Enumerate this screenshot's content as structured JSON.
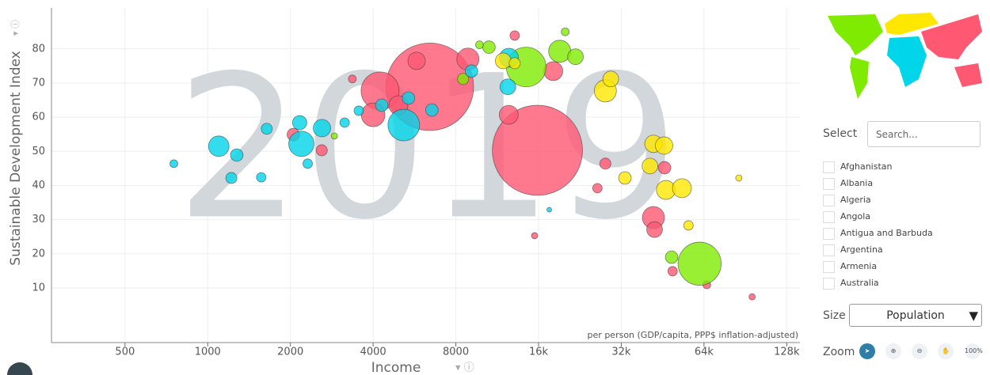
{
  "chart_data": {
    "type": "scatter",
    "year_label": "2019",
    "y_label": "Sustainable Development Index",
    "x_label": "Income",
    "x_note": "per person (GDP/capita, PPP$ inflation-adjusted)",
    "xlim": [
      270,
      143000
    ],
    "ylim": [
      -6,
      92
    ],
    "log_x": true,
    "grid": true,
    "xticks": [
      500,
      1000,
      2000,
      4000,
      8000,
      {
        "value": 16000,
        "label": "16k"
      },
      {
        "value": 32000,
        "label": "32k"
      },
      {
        "value": 64000,
        "label": "64k"
      },
      {
        "value": 128000,
        "label": "128k"
      }
    ],
    "yticks": [
      10,
      20,
      30,
      40,
      50,
      60,
      70,
      80
    ],
    "series": [
      {
        "color": "#ff5872",
        "x": [
          15850,
          6430,
          4240,
          4000,
          8850,
          41900,
          4940,
          12460,
          18100,
          5760,
          42300,
          2050,
          46000,
          2600,
          28000,
          26200,
          13100,
          49200,
          3360,
          65500,
          95800,
          15470
        ],
        "values": [
          50.3,
          68.9,
          67.7,
          60.7,
          77,
          30.6,
          63.5,
          60.7,
          73.5,
          76.5,
          27.1,
          54.9,
          45.2,
          50.3,
          46.4,
          39.2,
          83.9,
          14.9,
          71.2,
          10.9,
          7.4,
          25.3
        ],
        "sizes": [
          1440,
          1360,
          256,
          100,
          87,
          87,
          64,
          64,
          64,
          54,
          44,
          28,
          28,
          22,
          22,
          16,
          16,
          16,
          11,
          11,
          7,
          7
        ]
      },
      {
        "color": "#7feb00",
        "x": [
          61700,
          14420,
          19100,
          21800,
          10560,
          48800,
          8500,
          9750,
          20000,
          2890
        ],
        "values": [
          17.1,
          74.7,
          79.3,
          77.7,
          80.5,
          19,
          71.2,
          81.2,
          85,
          54.5
        ],
        "sizes": [
          330,
          278,
          87,
          44,
          28,
          28,
          22,
          11,
          11,
          7
        ]
      },
      {
        "color": "#00d5e9",
        "x": [
          5170,
          2192,
          1097,
          12480,
          2605,
          12370,
          2161,
          1276,
          4300,
          5377,
          6546,
          9120,
          1219,
          1640,
          753,
          1566,
          2311,
          3150,
          3547,
          17500
        ],
        "values": [
          57.7,
          52.2,
          51.5,
          77.4,
          56.8,
          68.9,
          58.4,
          48.9,
          63.5,
          65.6,
          62.1,
          73.5,
          42.2,
          56.6,
          46.4,
          42.4,
          46.4,
          58.4,
          61.9,
          32.9
        ],
        "sizes": [
          178,
          114,
          75,
          64,
          54,
          44,
          36,
          28,
          28,
          28,
          28,
          28,
          22,
          22,
          11,
          16,
          16,
          16,
          16,
          4
        ]
      },
      {
        "color": "#ffe700",
        "x": [
          28000,
          46500,
          53200,
          41900,
          45800,
          29300,
          40700,
          11900,
          33000,
          13100,
          56200,
          85700
        ],
        "values": [
          67.7,
          38.7,
          39.2,
          52.2,
          51.7,
          71.2,
          45.7,
          76.5,
          42.2,
          75.8,
          28.3,
          42.2
        ],
        "sizes": [
          87,
          64,
          64,
          54,
          54,
          44,
          44,
          44,
          28,
          22,
          16,
          7
        ]
      }
    ]
  },
  "panel": {
    "select": "Select",
    "search_placeholder": "Search...",
    "countries": [
      "Afghanistan",
      "Albania",
      "Algeria",
      "Angola",
      "Antigua and Barbuda",
      "Argentina",
      "Armenia",
      "Australia"
    ],
    "size_label": "Size",
    "size_value": "Population",
    "zoom_label": "Zoom",
    "zoom_reset": "100%"
  }
}
